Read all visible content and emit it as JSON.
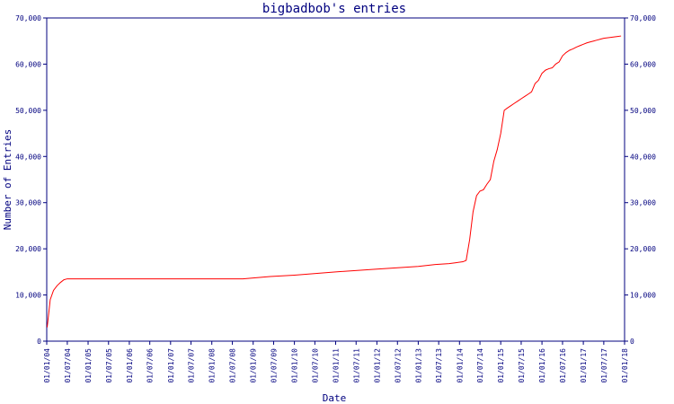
{
  "chart_data": {
    "type": "line",
    "title": "bigbadbob's entries",
    "xlabel": "Date",
    "ylabel": "Number of Entries",
    "xlim": [
      "2004-01-01",
      "2018-01-01"
    ],
    "ylim": [
      0,
      70000
    ],
    "y_ticks": [
      0,
      10000,
      20000,
      30000,
      40000,
      50000,
      60000,
      70000
    ],
    "y_tick_labels": [
      "0",
      "10,000",
      "20,000",
      "30,000",
      "40,000",
      "50,000",
      "60,000",
      "70,000"
    ],
    "x_tick_labels": [
      "01/01/04",
      "01/07/04",
      "01/01/05",
      "01/07/05",
      "01/01/06",
      "01/07/06",
      "01/01/07",
      "01/07/07",
      "01/01/08",
      "01/07/08",
      "01/01/09",
      "01/07/09",
      "01/01/10",
      "01/07/10",
      "01/01/11",
      "01/07/11",
      "01/01/12",
      "01/07/12",
      "01/01/13",
      "01/07/13",
      "01/01/14",
      "01/07/14",
      "01/01/15",
      "01/07/15",
      "01/01/16",
      "01/07/16",
      "01/01/17",
      "01/07/17",
      "01/01/18"
    ],
    "grid": false,
    "series_color": "#ff0000",
    "axis_color": "#00007f",
    "series": [
      {
        "x": [
          "2004-01-05",
          "2004-02-01",
          "2004-03-01",
          "2004-04-01",
          "2004-05-01",
          "2004-06-01",
          "2004-07-01",
          "2005-01-01",
          "2006-01-01",
          "2007-01-01",
          "2008-01-01",
          "2008-10-01",
          "2009-06-01",
          "2010-01-01",
          "2011-01-01",
          "2012-01-01",
          "2013-01-01",
          "2013-06-01",
          "2013-10-01",
          "2013-12-01",
          "2014-02-01",
          "2014-03-01",
          "2014-04-01",
          "2014-05-01",
          "2014-06-01",
          "2014-07-01",
          "2014-08-01",
          "2014-09-01",
          "2014-10-01",
          "2014-11-01",
          "2014-12-01",
          "2015-01-01",
          "2015-02-01",
          "2015-03-01",
          "2015-04-01",
          "2015-05-01",
          "2015-06-01",
          "2015-07-01",
          "2015-08-01",
          "2015-09-01",
          "2015-10-01",
          "2015-11-01",
          "2015-12-01",
          "2016-01-01",
          "2016-02-01",
          "2016-03-01",
          "2016-04-01",
          "2016-05-01",
          "2016-06-01",
          "2016-07-01",
          "2016-08-01",
          "2016-09-01",
          "2016-10-01",
          "2016-11-01",
          "2016-12-01",
          "2017-01-01",
          "2017-02-01",
          "2017-03-01",
          "2017-04-01",
          "2017-05-01",
          "2017-06-01",
          "2017-07-01",
          "2017-08-01",
          "2017-09-01",
          "2017-10-01",
          "2017-11-01",
          "2017-12-01"
        ],
        "y": [
          3000,
          9000,
          11000,
          12000,
          12700,
          13300,
          13500,
          13500,
          13500,
          13500,
          13500,
          13500,
          14000,
          14300,
          15000,
          15600,
          16200,
          16600,
          16800,
          17000,
          17200,
          17500,
          22000,
          28000,
          31500,
          32500,
          32800,
          34000,
          35000,
          39000,
          41500,
          45000,
          50000,
          50500,
          51000,
          51500,
          52000,
          52500,
          53000,
          53500,
          54000,
          55800,
          56500,
          58000,
          58700,
          59000,
          59200,
          60000,
          60500,
          61800,
          62500,
          63000,
          63300,
          63700,
          64000,
          64300,
          64600,
          64800,
          65000,
          65200,
          65400,
          65600,
          65700,
          65800,
          65900,
          66000,
          66100
        ]
      }
    ]
  }
}
